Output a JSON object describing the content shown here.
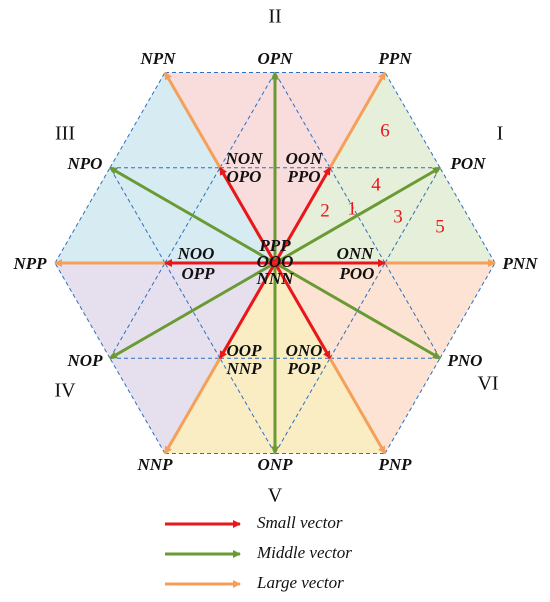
{
  "sectors": [
    "I",
    "II",
    "III",
    "IV",
    "V",
    "VI"
  ],
  "vectors": [
    "PNN",
    "PPN",
    "NPN",
    "NPP",
    "NNP",
    "PNP",
    "OPN",
    "PON",
    "NPO",
    "NOP",
    "ONP",
    "PNO",
    "NON",
    "OON",
    "OPO",
    "PPO",
    "NOO",
    "OPP",
    "ONN",
    "POO",
    "OOP",
    "ONO",
    "NNP",
    "POP",
    "PPP",
    "OOO",
    "NNN"
  ],
  "regions": [
    "1",
    "2",
    "3",
    "4",
    "5",
    "6"
  ],
  "legend": [
    "Small vector",
    "Middle vector",
    "Large vector"
  ]
}
